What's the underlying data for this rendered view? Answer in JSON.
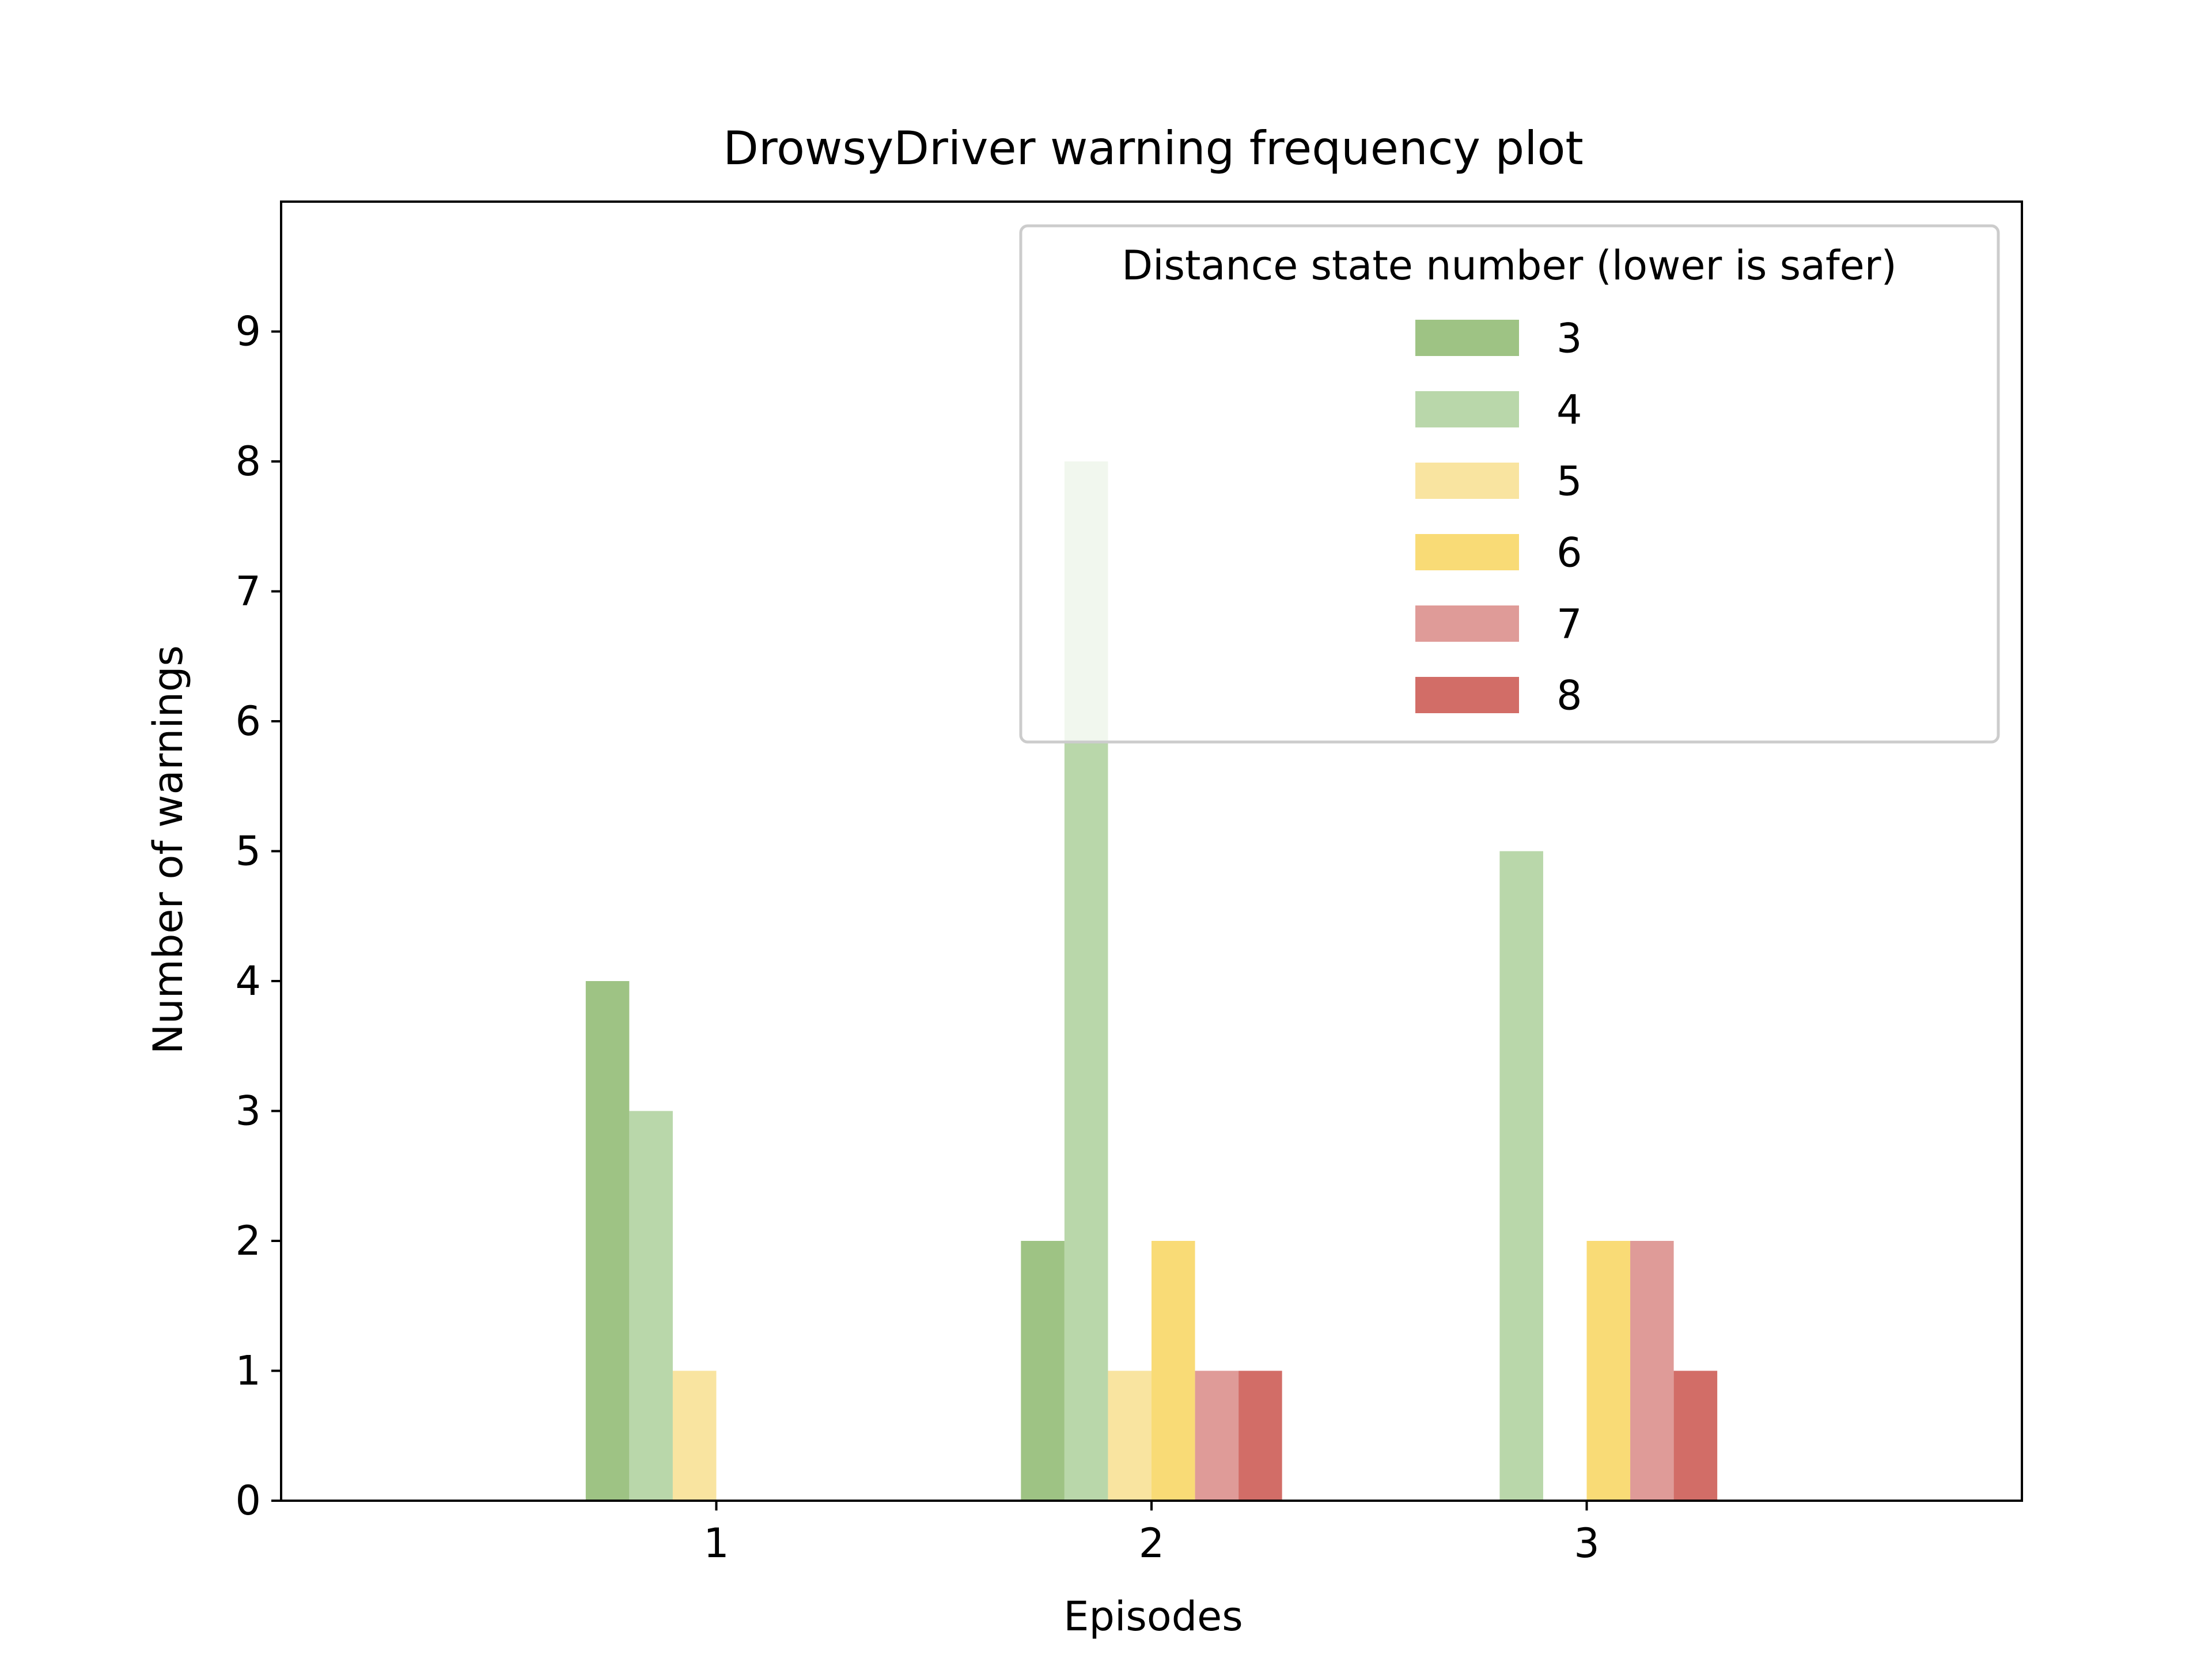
{
  "chart_data": {
    "type": "bar",
    "title": "DrowsyDriver warning frequency plot",
    "xlabel": "Episodes",
    "ylabel": "Number of warnings",
    "categories": [
      "1",
      "2",
      "3"
    ],
    "ylim": [
      0,
      10
    ],
    "yticks": [
      "0",
      "1",
      "2",
      "3",
      "4",
      "5",
      "6",
      "7",
      "8",
      "9"
    ],
    "grid": false,
    "legend": {
      "title": "Distance state number (lower is safer)",
      "placement": "top-right"
    },
    "series": [
      {
        "name": "3",
        "color": "#9ec384",
        "values": [
          4,
          2,
          0
        ]
      },
      {
        "name": "4",
        "color": "#b9d7aa",
        "values": [
          3,
          8,
          5
        ]
      },
      {
        "name": "5",
        "color": "#f9e4a0",
        "values": [
          1,
          1,
          0
        ]
      },
      {
        "name": "6",
        "color": "#f9db76",
        "values": [
          0,
          2,
          2
        ]
      },
      {
        "name": "7",
        "color": "#df9b98",
        "values": [
          0,
          1,
          2
        ]
      },
      {
        "name": "8",
        "color": "#d26d67",
        "values": [
          0,
          1,
          1
        ]
      }
    ]
  }
}
